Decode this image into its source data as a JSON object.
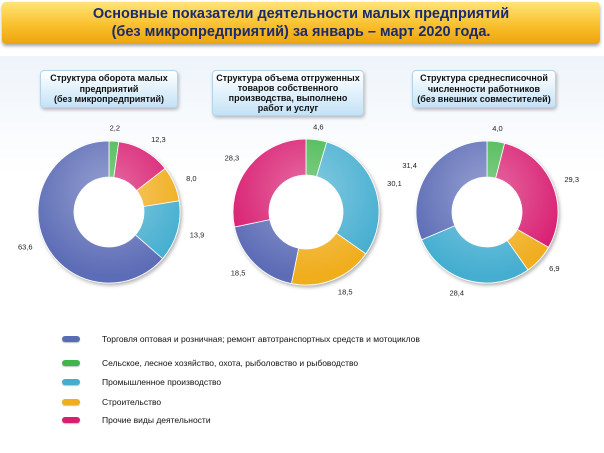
{
  "title": {
    "line1": "Основные показатели деятельности малых предприятий",
    "line2": "(без микропредприятий) за январь – март 2020 года."
  },
  "colors": {
    "trade": "#5b6cb6",
    "agriculture": "#3fb54a",
    "industry": "#44aed0",
    "construction": "#f0ad1c",
    "other": "#d81e6f"
  },
  "chart_data": [
    {
      "type": "pie",
      "title_lines": [
        "Структура оборота малых",
        "предприятий",
        "(без микропредприятий)"
      ],
      "slices": [
        {
          "key": "agriculture",
          "value": 2.2,
          "label": "2,2"
        },
        {
          "key": "other",
          "value": 12.3,
          "label": "12,3"
        },
        {
          "key": "construction",
          "value": 8.0,
          "label": "8,0"
        },
        {
          "key": "industry",
          "value": 13.9,
          "label": "13,9"
        },
        {
          "key": "trade",
          "value": 63.6,
          "label": "63,6"
        }
      ]
    },
    {
      "type": "pie",
      "title_lines": [
        "Структура объема отгруженных",
        "товаров собственного",
        "производства, выполнено",
        "работ и услуг"
      ],
      "slices": [
        {
          "key": "agriculture",
          "value": 4.6,
          "label": "4,6"
        },
        {
          "key": "industry",
          "value": 30.1,
          "label": "30,1"
        },
        {
          "key": "construction",
          "value": 18.5,
          "label": "18,5"
        },
        {
          "key": "trade",
          "value": 18.5,
          "label": "18,5"
        },
        {
          "key": "other",
          "value": 28.3,
          "label": "28,3"
        }
      ]
    },
    {
      "type": "pie",
      "title_lines": [
        "Структура среднесписочной",
        "численности работников",
        "(без внешних совместителей)"
      ],
      "slices": [
        {
          "key": "agriculture",
          "value": 4.0,
          "label": "4,0"
        },
        {
          "key": "other",
          "value": 29.3,
          "label": "29,3"
        },
        {
          "key": "construction",
          "value": 6.9,
          "label": "6,9"
        },
        {
          "key": "industry",
          "value": 28.4,
          "label": "28,4"
        },
        {
          "key": "trade",
          "value": 31.4,
          "label": "31,4"
        }
      ]
    }
  ],
  "legend": [
    {
      "key": "trade",
      "label": "Торговля оптовая и розничная; ремонт автотранспортных средств и мотоциклов"
    },
    {
      "key": "agriculture",
      "label": "Сельское, лесное хозяйство, охота, рыболовство  и рыбоводство"
    },
    {
      "key": "industry",
      "label": "Промышленное  производство"
    },
    {
      "key": "construction",
      "label": "Строительство"
    },
    {
      "key": "other",
      "label": "Прочие виды деятельности"
    }
  ]
}
